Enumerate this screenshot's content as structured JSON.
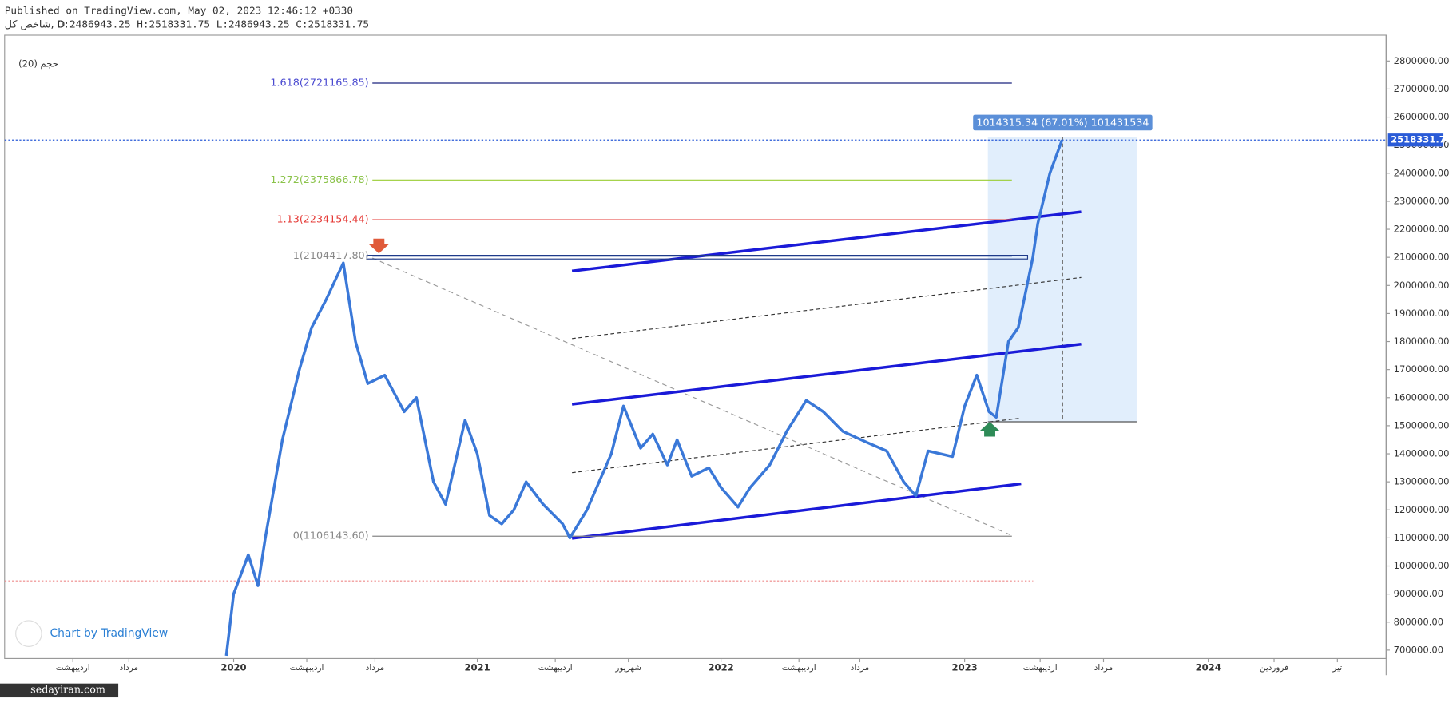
{
  "header": {
    "published": "Published on TradingView.com, May 02, 2023 12:46:12 +0330",
    "symbol": "شاخص کل, D",
    "ohlc": "O:2486943.25 H:2518331.75 L:2486943.25 C:2518331.75",
    "indicator": "(20) حجم"
  },
  "watermark": "Chart by TradingView",
  "site": "sedayiran.com",
  "chart_data": {
    "type": "line",
    "x": [
      2019.97,
      2020.0,
      2020.06,
      2020.1,
      2020.13,
      2020.2,
      2020.27,
      2020.32,
      2020.38,
      2020.45,
      2020.5,
      2020.55,
      2020.62,
      2020.7,
      2020.75,
      2020.82,
      2020.87,
      2020.95,
      2021.0,
      2021.05,
      2021.1,
      2021.15,
      2021.2,
      2021.27,
      2021.35,
      2021.38,
      2021.45,
      2021.55,
      2021.6,
      2021.67,
      2021.72,
      2021.78,
      2021.82,
      2021.88,
      2021.95,
      2022.0,
      2022.07,
      2022.12,
      2022.2,
      2022.27,
      2022.35,
      2022.42,
      2022.5,
      2022.6,
      2022.68,
      2022.75,
      2022.8,
      2022.85,
      2022.95,
      2023.0,
      2023.05,
      2023.1,
      2023.13,
      2023.18,
      2023.22,
      2023.28,
      2023.3,
      2023.35,
      2023.4
    ],
    "series": [
      {
        "name": "شاخص کل",
        "color": "#3a78d8",
        "values": [
          680000,
          900000,
          1040000,
          930000,
          1100000,
          1450000,
          1700000,
          1850000,
          1950000,
          2080000,
          1800000,
          1650000,
          1680000,
          1550000,
          1600000,
          1300000,
          1220000,
          1520000,
          1400000,
          1180000,
          1150000,
          1200000,
          1300000,
          1220000,
          1150000,
          1100000,
          1200000,
          1400000,
          1570000,
          1420000,
          1470000,
          1360000,
          1450000,
          1320000,
          1350000,
          1280000,
          1210000,
          1280000,
          1360000,
          1480000,
          1590000,
          1550000,
          1480000,
          1440000,
          1410000,
          1300000,
          1250000,
          1410000,
          1390000,
          1570000,
          1680000,
          1550000,
          1530000,
          1800000,
          1850000,
          2100000,
          2220000,
          2400000,
          2518331.75
        ]
      }
    ],
    "xlim": [
      2019.06,
      2024.73
    ],
    "xticks": [
      {
        "value": 2019.34,
        "label": "اردیبهشت"
      },
      {
        "value": 2019.57,
        "label": "مرداد"
      },
      {
        "value": 2020,
        "label": "2020"
      },
      {
        "value": 2020.3,
        "label": "اردیبهشت"
      },
      {
        "value": 2020.58,
        "label": "مرداد"
      },
      {
        "value": 2021,
        "label": "2021"
      },
      {
        "value": 2021.32,
        "label": "اردیبهشت"
      },
      {
        "value": 2021.62,
        "label": "شهریور"
      },
      {
        "value": 2022,
        "label": "2022"
      },
      {
        "value": 2022.32,
        "label": "اردیبهشت"
      },
      {
        "value": 2022.57,
        "label": "مرداد"
      },
      {
        "value": 2023,
        "label": "2023"
      },
      {
        "value": 2023.31,
        "label": "اردیبهشت"
      },
      {
        "value": 2023.57,
        "label": "مرداد"
      },
      {
        "value": 2024,
        "label": "2024"
      },
      {
        "value": 2024.27,
        "label": "فروردین"
      },
      {
        "value": 2024.53,
        "label": "تیر"
      }
    ],
    "ylim": [
      670000,
      2892000
    ],
    "yticks": [
      {
        "value": 700000,
        "label": "700000.00"
      },
      {
        "value": 800000,
        "label": "800000.00"
      },
      {
        "value": 900000,
        "label": "900000.00"
      },
      {
        "value": 1000000,
        "label": "1000000.00"
      },
      {
        "value": 1100000,
        "label": "1100000.00"
      },
      {
        "value": 1200000,
        "label": "1200000.00"
      },
      {
        "value": 1300000,
        "label": "1300000.00"
      },
      {
        "value": 1400000,
        "label": "1400000.00"
      },
      {
        "value": 1500000,
        "label": "1500000.00"
      },
      {
        "value": 1600000,
        "label": "1600000.00"
      },
      {
        "value": 1700000,
        "label": "1700000.00"
      },
      {
        "value": 1800000,
        "label": "1800000.00"
      },
      {
        "value": 1900000,
        "label": "1900000.00"
      },
      {
        "value": 2000000,
        "label": "2000000.00"
      },
      {
        "value": 2100000,
        "label": "2100000.00"
      },
      {
        "value": 2200000,
        "label": "2200000.00"
      },
      {
        "value": 2300000,
        "label": "2300000.00"
      },
      {
        "value": 2400000,
        "label": "2400000.00"
      },
      {
        "value": 2500000,
        "label": "2500000.00"
      },
      {
        "value": 2600000,
        "label": "2600000.00"
      },
      {
        "value": 2700000,
        "label": "2700000.00"
      },
      {
        "value": 2800000,
        "label": "2800000.00"
      }
    ],
    "fib_levels": [
      {
        "label": "1.618(2721165.85)",
        "value": 2721165.85,
        "color": "#4a4ad0",
        "line": "#1a237e"
      },
      {
        "label": "1.272(2375866.78)",
        "value": 2375866.78,
        "color": "#8bc34a",
        "line": "#9acd32"
      },
      {
        "label": "1.13(2234154.44)",
        "value": 2234154.44,
        "color": "#e53935",
        "line": "#e53935"
      },
      {
        "label": "1(2104417.80)",
        "value": 2104417.8,
        "color": "#888888",
        "line": "#1e3a8a"
      },
      {
        "label": "0(1106143.60)",
        "value": 1106143.6,
        "color": "#888888",
        "line": "#888888"
      }
    ],
    "last_price": {
      "value": 2518331.75,
      "label": "2518331.75"
    },
    "measure_label": "1014315.34 (67.01%) 101431534"
  }
}
